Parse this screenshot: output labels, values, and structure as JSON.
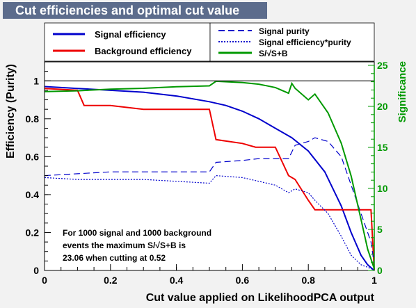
{
  "title": "Cut efficiencies and optimal cut value",
  "chart_data": {
    "type": "line",
    "xlabel": "Cut value applied on LikelihoodPCA output",
    "ylabel": "Efficiency (Purity)",
    "y2label": "Significance",
    "xlim": [
      0,
      1
    ],
    "ylim": [
      0,
      1.1
    ],
    "y2lim": [
      0,
      25
    ],
    "xticks": [
      "0",
      "0.2",
      "0.4",
      "0.6",
      "0.8",
      "1"
    ],
    "yticks": [
      "0",
      "0.2",
      "0.4",
      "0.6",
      "0.8",
      "1"
    ],
    "y2ticks": [
      "0",
      "5",
      "10",
      "15",
      "20",
      "25"
    ],
    "legend_left": [
      {
        "name": "Signal efficiency",
        "color": "#0000cc",
        "style": "solid"
      },
      {
        "name": "Background efficiency",
        "color": "#ee0000",
        "style": "solid"
      }
    ],
    "legend_right": [
      {
        "name": "Signal purity",
        "color": "#0000cc",
        "style": "dashed"
      },
      {
        "name": "Signal efficiency*purity",
        "color": "#0000cc",
        "style": "dotted"
      },
      {
        "name": "S/√S+B",
        "color": "#009900",
        "style": "solid"
      }
    ],
    "annotation": [
      "For 1000 signal and 1000 background",
      "events the maximum S/√S+B is",
      "23.06 when cutting at  0.52"
    ],
    "series": [
      {
        "name": "Signal efficiency",
        "axis": "left",
        "color": "#0000cc",
        "x": [
          0,
          0.1,
          0.2,
          0.3,
          0.4,
          0.5,
          0.55,
          0.6,
          0.65,
          0.7,
          0.75,
          0.8,
          0.85,
          0.9,
          0.93,
          0.96,
          0.98,
          1.0
        ],
        "y": [
          0.97,
          0.96,
          0.95,
          0.94,
          0.92,
          0.89,
          0.87,
          0.84,
          0.8,
          0.75,
          0.7,
          0.63,
          0.52,
          0.34,
          0.2,
          0.08,
          0.03,
          0.0
        ]
      },
      {
        "name": "Background efficiency",
        "axis": "left",
        "color": "#ee0000",
        "x": [
          0,
          0.1,
          0.12,
          0.2,
          0.3,
          0.4,
          0.5,
          0.52,
          0.6,
          0.64,
          0.7,
          0.74,
          0.76,
          0.8,
          0.82,
          0.9,
          0.99,
          1.0
        ],
        "y": [
          0.96,
          0.95,
          0.87,
          0.87,
          0.85,
          0.85,
          0.85,
          0.69,
          0.67,
          0.65,
          0.65,
          0.5,
          0.48,
          0.37,
          0.32,
          0.32,
          0.32,
          0.0
        ]
      },
      {
        "name": "Signal purity",
        "axis": "left",
        "color": "#0000cc",
        "x": [
          0,
          0.1,
          0.2,
          0.3,
          0.4,
          0.5,
          0.52,
          0.6,
          0.65,
          0.7,
          0.74,
          0.76,
          0.8,
          0.82,
          0.86,
          0.9,
          0.93,
          0.96,
          0.99,
          1.0
        ],
        "y": [
          0.5,
          0.51,
          0.52,
          0.52,
          0.52,
          0.52,
          0.57,
          0.58,
          0.59,
          0.59,
          0.59,
          0.66,
          0.68,
          0.7,
          0.68,
          0.6,
          0.45,
          0.3,
          0.15,
          0.03
        ]
      },
      {
        "name": "Signal efficiency*purity",
        "axis": "left",
        "color": "#0000cc",
        "x": [
          0,
          0.1,
          0.2,
          0.3,
          0.4,
          0.5,
          0.52,
          0.6,
          0.65,
          0.7,
          0.74,
          0.76,
          0.8,
          0.82,
          0.86,
          0.9,
          0.93,
          0.96,
          0.99,
          1.0
        ],
        "y": [
          0.49,
          0.48,
          0.48,
          0.48,
          0.47,
          0.46,
          0.5,
          0.49,
          0.47,
          0.45,
          0.41,
          0.43,
          0.41,
          0.37,
          0.3,
          0.18,
          0.08,
          0.03,
          0.01,
          0.0
        ]
      },
      {
        "name": "S/√S+B",
        "axis": "right",
        "color": "#009900",
        "x": [
          0,
          0.1,
          0.2,
          0.3,
          0.4,
          0.5,
          0.52,
          0.6,
          0.65,
          0.7,
          0.74,
          0.75,
          0.76,
          0.8,
          0.82,
          0.86,
          0.9,
          0.93,
          0.96,
          0.98,
          1.0
        ],
        "y": [
          21.8,
          21.9,
          22.1,
          22.2,
          22.4,
          22.5,
          23.06,
          22.9,
          22.7,
          22.3,
          21.6,
          22.8,
          22.2,
          20.8,
          21.5,
          19.2,
          15.5,
          11.5,
          6.2,
          2.6,
          0.2
        ]
      },
      {
        "name": "",
        "axis": "left",
        "color": "#000000",
        "x": [
          0,
          1
        ],
        "y": [
          1,
          1
        ]
      }
    ]
  }
}
